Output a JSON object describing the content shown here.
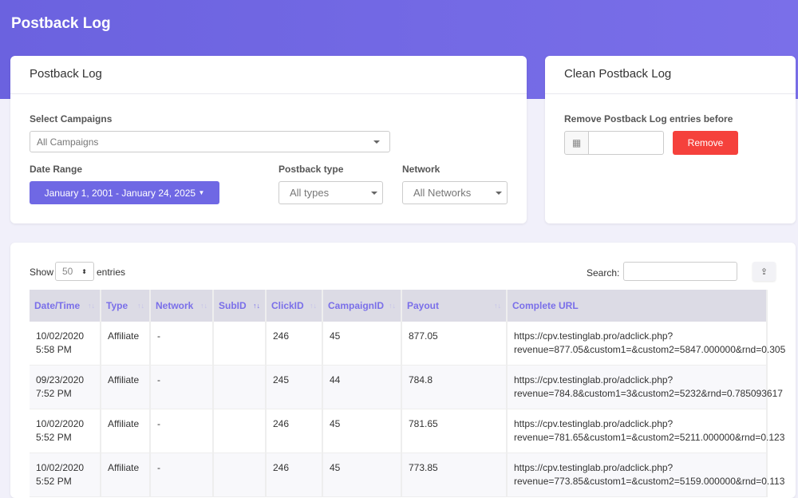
{
  "page_title": "Postback Log",
  "filter_card": {
    "title": "Postback Log",
    "campaigns_label": "Select Campaigns",
    "campaigns_value": "All Campaigns",
    "date_label": "Date Range",
    "date_value": "January 1, 2001 - January 24, 2025",
    "type_label": "Postback type",
    "type_value": "All types",
    "network_label": "Network",
    "network_value": "All Networks"
  },
  "clean_card": {
    "title": "Clean Postback Log",
    "label": "Remove Postback Log entries before",
    "date_value": "",
    "remove_label": "Remove"
  },
  "table": {
    "show_label": "Show",
    "entries_value": "50",
    "entries_label": "entries",
    "search_label": "Search:",
    "search_value": "",
    "columns": [
      "Date/Time",
      "Type",
      "Network",
      "SubID",
      "ClickID",
      "CampaignID",
      "Payout",
      "Complete URL"
    ],
    "rows": [
      {
        "date": "10/02/2020",
        "time": "5:58 PM",
        "type": "Affiliate",
        "network": "-",
        "subid": "",
        "clickid": "246",
        "campaignid": "45",
        "payout": "877.05",
        "url1": "https://cpv.testinglab.pro/adclick.php?",
        "url2": "revenue=877.05&custom1=&custom2=5847.000000&rnd=0.305"
      },
      {
        "date": "09/23/2020",
        "time": "7:52 PM",
        "type": "Affiliate",
        "network": "-",
        "subid": "",
        "clickid": "245",
        "campaignid": "44",
        "payout": "784.8",
        "url1": "https://cpv.testinglab.pro/adclick.php?",
        "url2": "revenue=784.8&custom1=3&custom2=5232&rnd=0.785093617"
      },
      {
        "date": "10/02/2020",
        "time": "5:52 PM",
        "type": "Affiliate",
        "network": "-",
        "subid": "",
        "clickid": "246",
        "campaignid": "45",
        "payout": "781.65",
        "url1": "https://cpv.testinglab.pro/adclick.php?",
        "url2": "revenue=781.65&custom1=&custom2=5211.000000&rnd=0.123"
      },
      {
        "date": "10/02/2020",
        "time": "5:52 PM",
        "type": "Affiliate",
        "network": "-",
        "subid": "",
        "clickid": "246",
        "campaignid": "45",
        "payout": "773.85",
        "url1": "https://cpv.testinglab.pro/adclick.php?",
        "url2": "revenue=773.85&custom1=&custom2=5159.000000&rnd=0.113"
      }
    ]
  },
  "colors": {
    "accent": "#6f68e4",
    "danger": "#f5413c"
  }
}
